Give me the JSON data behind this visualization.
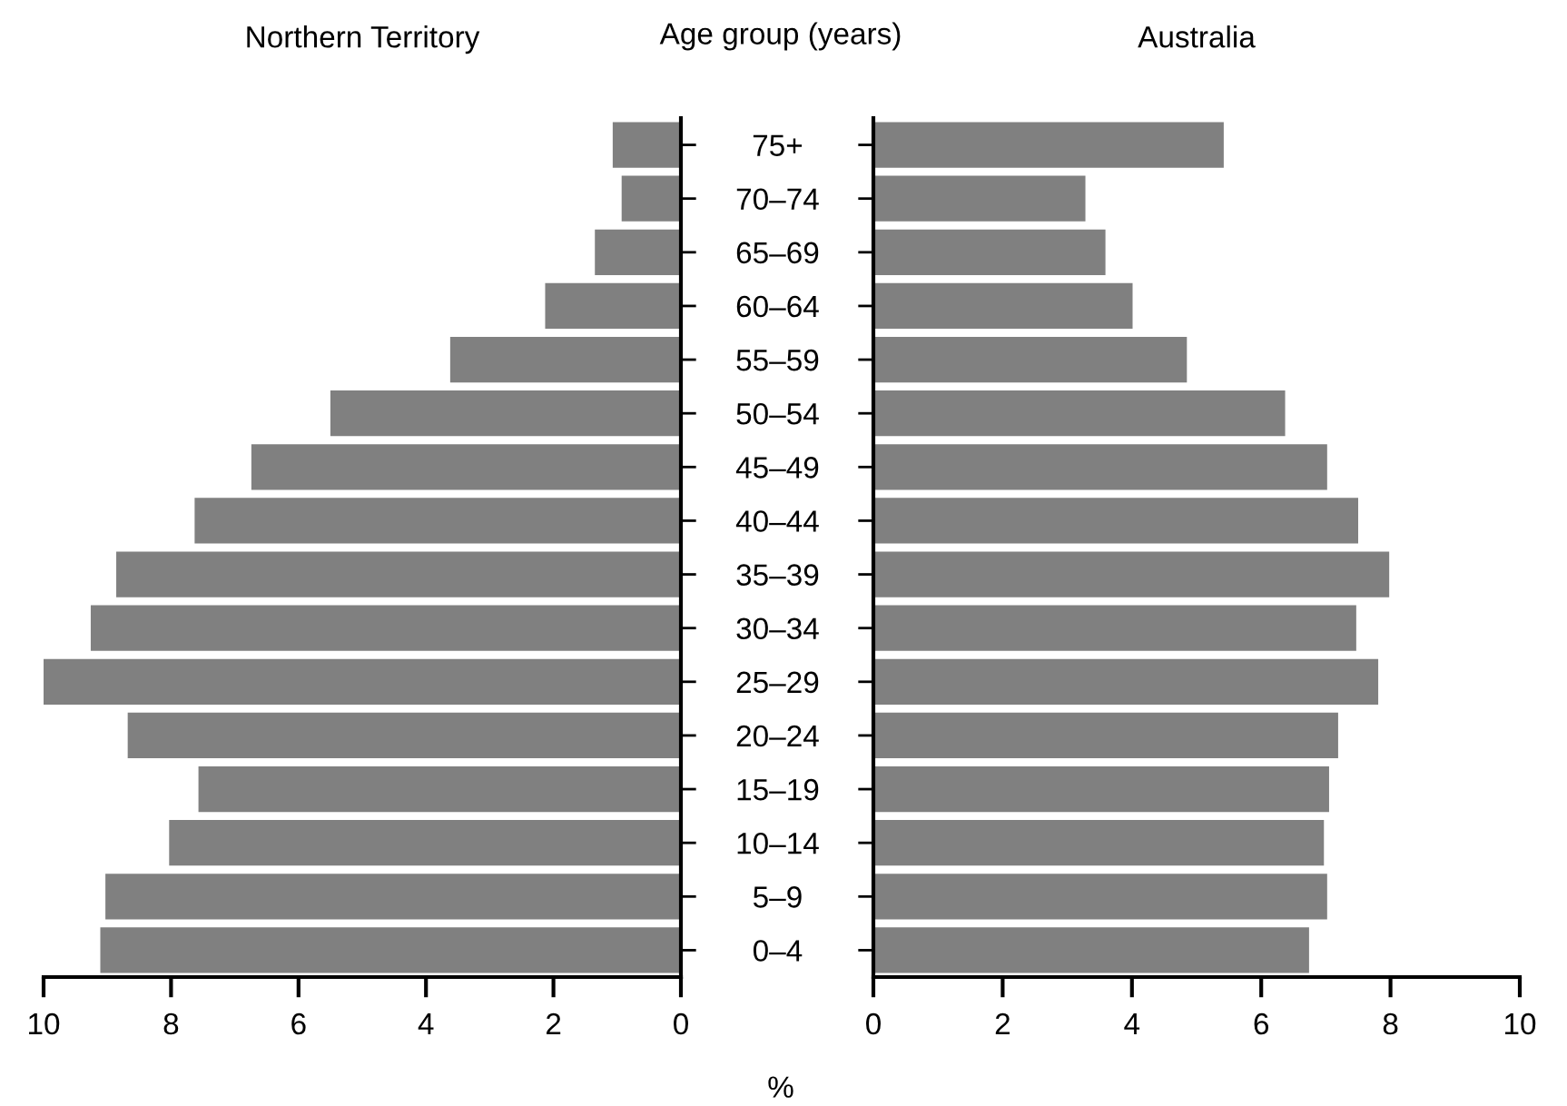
{
  "chart_data": [
    {
      "type": "bar",
      "orientation": "horizontal",
      "title": "Northern Territory",
      "categories": [
        null,
        null,
        null,
        null,
        null,
        null,
        null,
        null,
        null,
        null,
        null,
        null,
        null,
        null,
        null,
        null
      ],
      "values": [
        1.07,
        0.93,
        1.35,
        2.13,
        3.62,
        5.5,
        6.74,
        7.63,
        8.86,
        9.26,
        10.0,
        8.68,
        7.57,
        8.03,
        9.03,
        9.11
      ],
      "color": "#808080",
      "xlim": [
        10,
        0
      ],
      "xticks": [
        10,
        8,
        6,
        4,
        2,
        0
      ],
      "grid": false,
      "legend": false,
      "tick_labels": "x",
      "annotations": [
        "Age group (years)",
        "%"
      ]
    },
    {
      "type": "bar",
      "orientation": "horizontal",
      "title": "Australia",
      "categories": [
        "75+",
        "70–74",
        "65–69",
        "60–64",
        "55–59",
        "50–54",
        "45–49",
        "40–44",
        "35–39",
        "30–34",
        "25–29",
        "20–24",
        "15–19",
        "10–14",
        "5–9",
        "0–4"
      ],
      "values": [
        5.42,
        3.28,
        3.59,
        4.01,
        4.85,
        6.37,
        7.02,
        7.5,
        7.98,
        7.47,
        7.81,
        7.19,
        7.05,
        6.97,
        7.02,
        6.74
      ],
      "color": "#808080",
      "xlim": [
        0,
        10
      ],
      "xticks": [
        0,
        2,
        4,
        6,
        8,
        10
      ],
      "grid": false,
      "legend": false
    }
  ]
}
